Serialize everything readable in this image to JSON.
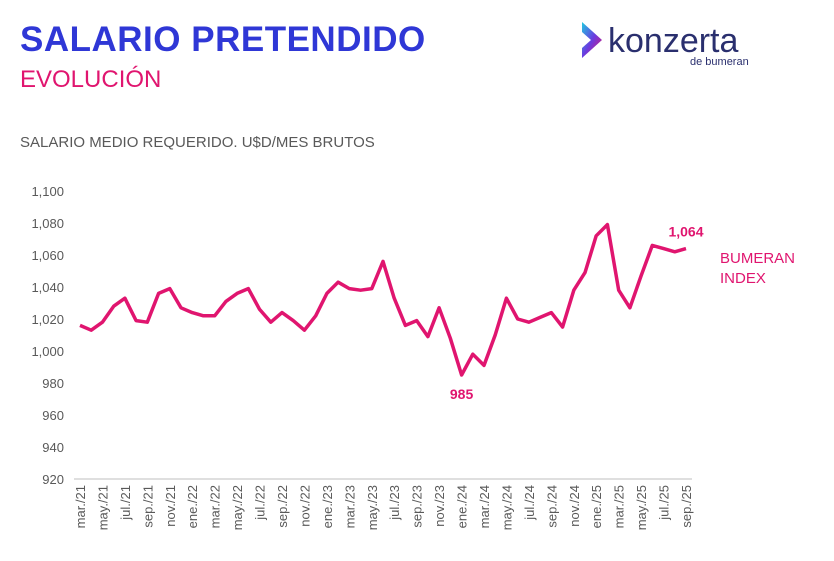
{
  "header": {
    "title": "SALARIO PRETENDIDO",
    "subtitle": "EVOLUCIÓN"
  },
  "logo": {
    "name": "konzerta",
    "tagline": "de bumeran"
  },
  "chart_data": {
    "type": "line",
    "title": "SALARIO MEDIO REQUERIDO. U$D/MES BRUTOS",
    "categories": [
      "mar./21",
      null,
      "may./21",
      null,
      "jul./21",
      null,
      "sep./21",
      null,
      "nov./21",
      null,
      "ene./22",
      null,
      "mar./22",
      null,
      "may./22",
      null,
      "jul./22",
      null,
      "sep./22",
      null,
      "nov./22",
      null,
      "ene./23",
      null,
      "mar./23",
      null,
      "may./23",
      null,
      "jul./23",
      null,
      "sep./23",
      null,
      "nov./23",
      null,
      "ene./24",
      null,
      "mar./24",
      null,
      "may./24",
      null,
      "jul./24",
      null,
      "sep./24",
      null,
      "nov./24",
      null,
      "ene./25",
      null,
      "mar./25",
      null,
      "may./25",
      null,
      "jul./25",
      null,
      "sep./25"
    ],
    "series": [
      {
        "name": "BUMERAN INDEX",
        "color": "#e0156f",
        "values": [
          1016,
          1013,
          1018,
          1028,
          1033,
          1019,
          1018,
          1036,
          1039,
          1027,
          1024,
          1022,
          1022,
          1031,
          1036,
          1039,
          1026,
          1018,
          1024,
          1019,
          1013,
          1022,
          1036,
          1043,
          1039,
          1038,
          1039,
          1056,
          1033,
          1016,
          1019,
          1009,
          1027,
          1008,
          985,
          998,
          991,
          1010,
          1033,
          1020,
          1018,
          1021,
          1024,
          1015,
          1038,
          1049,
          1072,
          1079,
          1038,
          1027,
          1047,
          1066,
          1064,
          1062,
          1064
        ],
        "value_labels": [
          null,
          null,
          null,
          null,
          null,
          null,
          null,
          null,
          null,
          null,
          null,
          null,
          null,
          null,
          null,
          null,
          null,
          null,
          null,
          null,
          null,
          null,
          null,
          null,
          null,
          null,
          null,
          null,
          null,
          null,
          null,
          null,
          null,
          null,
          "985",
          null,
          null,
          null,
          null,
          null,
          null,
          null,
          null,
          null,
          null,
          null,
          null,
          null,
          null,
          null,
          null,
          null,
          null,
          null,
          "1,064"
        ]
      }
    ],
    "ylim": [
      920,
      1100
    ],
    "yticks": [
      920,
      940,
      960,
      980,
      {
        "value": 1000,
        "label": "1,000"
      },
      {
        "value": 1020,
        "label": "1,020"
      },
      {
        "value": 1040,
        "label": "1,040"
      },
      {
        "value": 1060,
        "label": "1,060"
      },
      {
        "value": 1080,
        "label": "1,080"
      },
      {
        "value": 1100,
        "label": "1,100"
      }
    ],
    "grid": false
  }
}
